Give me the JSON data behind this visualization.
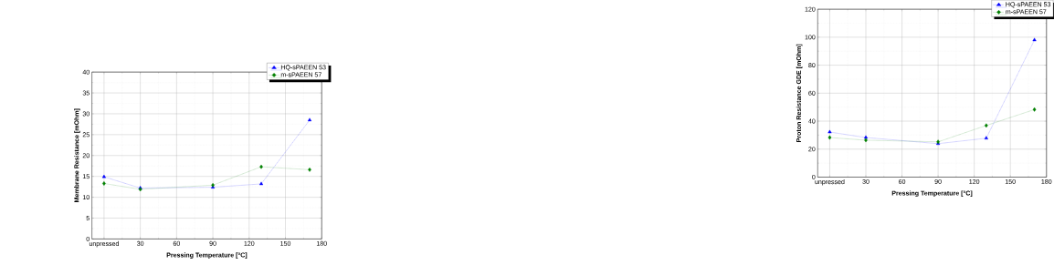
{
  "chart_data": [
    {
      "type": "line",
      "xlabel": "Pressing Temperature [°C]",
      "ylabel": "Membrane Resistance [mOhm]",
      "x": [
        0,
        30,
        90,
        130,
        170
      ],
      "xlim": [
        -10,
        180
      ],
      "xticks": [
        {
          "value": 0,
          "label": "unpressed"
        },
        30,
        60,
        90,
        120,
        150,
        180
      ],
      "ylim": [
        0,
        40
      ],
      "yticks": [
        0,
        5,
        10,
        15,
        20,
        25,
        30,
        35,
        40
      ],
      "grid": true,
      "legend": "top right",
      "line_style": "dotted",
      "series": [
        {
          "name": "HQ-sPAEEN 53",
          "color": "#0000ff",
          "marker": "triangle",
          "values": [
            14.9,
            12.2,
            12.4,
            13.2,
            28.5
          ]
        },
        {
          "name": "m-sPAEEN 57",
          "color": "#008000",
          "marker": "diamond",
          "values": [
            13.3,
            11.9,
            12.9,
            17.3,
            16.6
          ]
        }
      ]
    },
    {
      "type": "line",
      "xlabel": "Pressing Temperature [°C]",
      "ylabel": "Proton Resistance GDE [mOhm]",
      "x": [
        0,
        30,
        90,
        130,
        170
      ],
      "xlim": [
        -10,
        180
      ],
      "xticks": [
        {
          "value": 0,
          "label": "unpressed"
        },
        30,
        60,
        90,
        120,
        150,
        180
      ],
      "ylim": [
        0,
        120
      ],
      "yticks": [
        0,
        20,
        40,
        60,
        80,
        100,
        120
      ],
      "grid": true,
      "legend": "top right",
      "line_style": "dotted",
      "series": [
        {
          "name": "HQ-sPAEEN 53",
          "color": "#0000ff",
          "marker": "triangle",
          "values": [
            32.2,
            28.3,
            23.9,
            27.8,
            98
          ]
        },
        {
          "name": "m-sPAEEN 57",
          "color": "#008000",
          "marker": "diamond",
          "values": [
            28.3,
            26.4,
            25.2,
            36.9,
            48.3
          ]
        }
      ]
    }
  ]
}
